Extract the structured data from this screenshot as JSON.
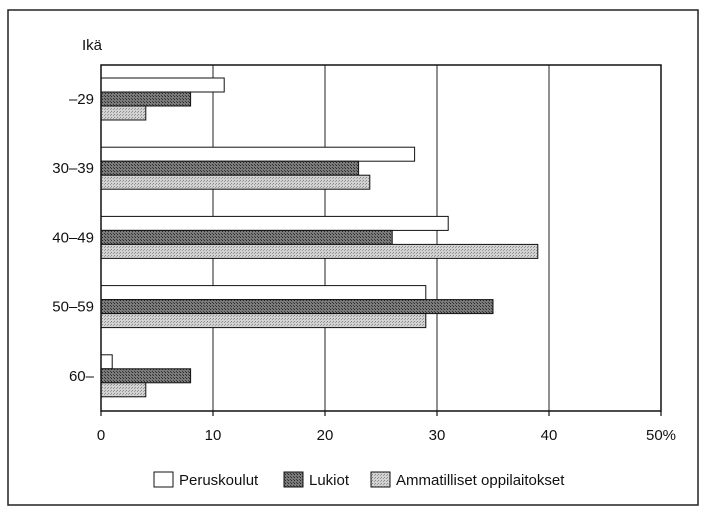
{
  "chart_data": {
    "type": "bar",
    "orientation": "horizontal",
    "ylabel": "Ikä",
    "xlabel": "",
    "categories": [
      "–29",
      "30–39",
      "40–49",
      "50–59",
      "60–"
    ],
    "series": [
      {
        "name": "Peruskoulut",
        "values": [
          11,
          28,
          31,
          29,
          1
        ],
        "color": "#ffffff"
      },
      {
        "name": "Lukiot",
        "values": [
          8,
          23,
          26,
          35,
          8
        ],
        "color": "#5a5a5a"
      },
      {
        "name": "Ammatilliset oppilaitokset",
        "values": [
          4,
          24,
          39,
          29,
          4
        ],
        "color": "#b4b4b4"
      }
    ],
    "xlim": [
      0,
      50
    ],
    "xticks": [
      "0",
      "10",
      "20",
      "30",
      "40",
      "50%"
    ],
    "grid": "vertical",
    "legend_position": "bottom"
  }
}
